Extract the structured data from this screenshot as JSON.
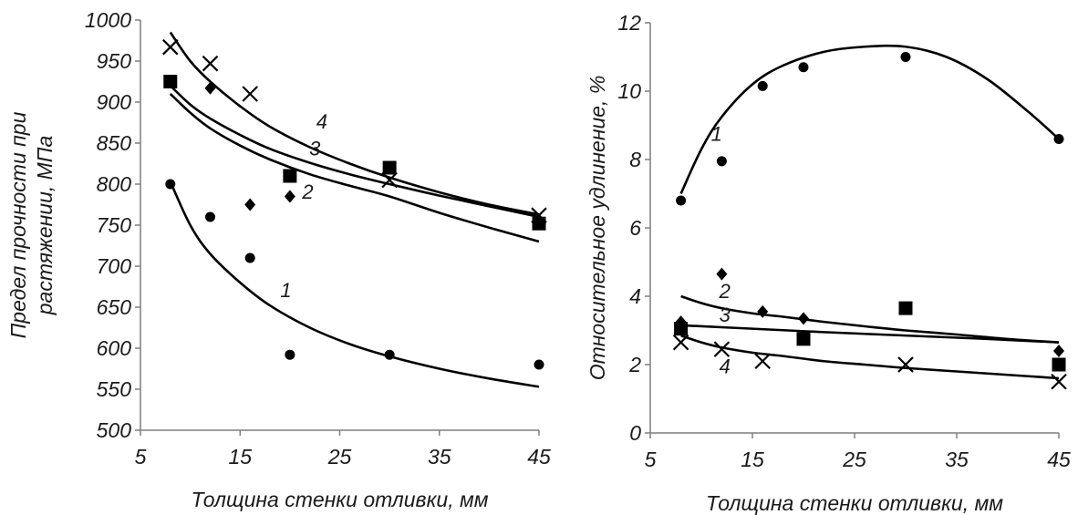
{
  "chart_data": [
    {
      "type": "scatter",
      "xlabel": "Толщина стенки отливки, мм",
      "ylabel_lines": [
        "Предел прочности при",
        "растяжении, МПа"
      ],
      "x_ticks": [
        5,
        15,
        25,
        35,
        45
      ],
      "y_ticks": [
        500,
        550,
        600,
        650,
        700,
        750,
        800,
        850,
        900,
        950,
        1000
      ],
      "xlim": [
        5,
        45
      ],
      "ylim": [
        500,
        1000
      ],
      "grid": false,
      "series": [
        {
          "name": "1",
          "marker": "circle",
          "x": [
            8,
            12,
            16,
            20,
            30,
            45
          ],
          "y": [
            800,
            760,
            710,
            592,
            592,
            580
          ],
          "trend": {
            "x": [
              8,
              10,
              12,
              15,
              18,
              22,
              26,
              30,
              35,
              40,
              45
            ],
            "y": [
              803,
              750,
              715,
              680,
              652,
              625,
              605,
              590,
              575,
              563,
              553
            ]
          }
        },
        {
          "name": "2",
          "marker": "diamond",
          "x": [
            8,
            12,
            16,
            20,
            30,
            45
          ],
          "y": [
            925,
            917,
            775,
            785,
            820,
            752
          ],
          "trend": {
            "x": [
              8,
              10,
              12,
              15,
              18,
              22,
              26,
              30,
              35,
              40,
              45
            ],
            "y": [
              910,
              887,
              868,
              847,
              830,
              812,
              798,
              785,
              765,
              747,
              730
            ]
          }
        },
        {
          "name": "3",
          "marker": "square",
          "x": [
            8,
            20,
            30,
            45
          ],
          "y": [
            925,
            810,
            820,
            752
          ],
          "trend": {
            "x": [
              8,
              10,
              12,
              15,
              18,
              22,
              26,
              30,
              35,
              40,
              45
            ],
            "y": [
              920,
              897,
              880,
              860,
              843,
              826,
              812,
              800,
              786,
              773,
              760
            ]
          }
        },
        {
          "name": "4",
          "marker": "cross",
          "x": [
            8,
            12,
            16,
            30,
            45
          ],
          "y": [
            967,
            947,
            910,
            805,
            762
          ],
          "trend": {
            "x": [
              8,
              10,
              12,
              15,
              18,
              22,
              26,
              30,
              35,
              40,
              45
            ],
            "y": [
              985,
              950,
              925,
              895,
              870,
              845,
              825,
              808,
              790,
              775,
              763
            ]
          }
        }
      ],
      "curve_labels": [
        {
          "text": "1",
          "x": 19.6,
          "y": 662
        },
        {
          "text": "2",
          "x": 21.8,
          "y": 782
        },
        {
          "text": "3",
          "x": 22.5,
          "y": 835
        },
        {
          "text": "4",
          "x": 23.2,
          "y": 868
        }
      ]
    },
    {
      "type": "scatter",
      "xlabel": "Толщина стенки отливки, мм",
      "ylabel_lines": [
        "Относительное удлинение, %"
      ],
      "x_ticks": [
        5,
        15,
        25,
        35,
        45
      ],
      "y_ticks": [
        0,
        2,
        4,
        6,
        8,
        10,
        12
      ],
      "xlim": [
        5,
        45
      ],
      "ylim": [
        0,
        12
      ],
      "grid": false,
      "series": [
        {
          "name": "1",
          "marker": "circle",
          "x": [
            8,
            12,
            16,
            20,
            30,
            45
          ],
          "y": [
            6.8,
            7.95,
            10.15,
            10.7,
            11.0,
            8.6
          ],
          "trend": {
            "x": [
              8,
              10,
              12,
              15,
              18,
              22,
              26,
              30,
              34,
              38,
              42,
              45
            ],
            "y": [
              7.0,
              8.3,
              9.25,
              10.2,
              10.75,
              11.15,
              11.3,
              11.3,
              11.0,
              10.35,
              9.4,
              8.6
            ]
          }
        },
        {
          "name": "2",
          "marker": "diamond",
          "x": [
            8,
            12,
            16,
            20,
            45
          ],
          "y": [
            3.25,
            4.65,
            3.55,
            3.35,
            2.4
          ],
          "trend": {
            "x": [
              8,
              10,
              12,
              15,
              18,
              22,
              26,
              30,
              35,
              40,
              45
            ],
            "y": [
              4.0,
              3.8,
              3.65,
              3.5,
              3.4,
              3.25,
              3.12,
              3.0,
              2.88,
              2.75,
              2.65
            ]
          }
        },
        {
          "name": "3",
          "marker": "square",
          "x": [
            8,
            20,
            30,
            45
          ],
          "y": [
            3.05,
            2.75,
            3.65,
            2.0
          ],
          "trend": {
            "x": [
              8,
              15,
              22,
              30,
              38,
              45
            ],
            "y": [
              3.15,
              3.05,
              2.95,
              2.85,
              2.75,
              2.65
            ]
          }
        },
        {
          "name": "4",
          "marker": "cross",
          "x": [
            8,
            12,
            16,
            30,
            45
          ],
          "y": [
            2.65,
            2.45,
            2.1,
            2.0,
            1.5
          ],
          "trend": {
            "x": [
              8,
              10,
              12,
              15,
              18,
              22,
              26,
              30,
              35,
              40,
              45
            ],
            "y": [
              2.85,
              2.65,
              2.5,
              2.35,
              2.25,
              2.1,
              2.0,
              1.9,
              1.8,
              1.7,
              1.6
            ]
          }
        }
      ],
      "curve_labels": [
        {
          "text": "1",
          "x": 11.5,
          "y": 8.55
        },
        {
          "text": "2",
          "x": 12.3,
          "y": 3.95
        },
        {
          "text": "3",
          "x": 12.3,
          "y": 3.25
        },
        {
          "text": "4",
          "x": 12.3,
          "y": 1.75
        }
      ]
    }
  ]
}
